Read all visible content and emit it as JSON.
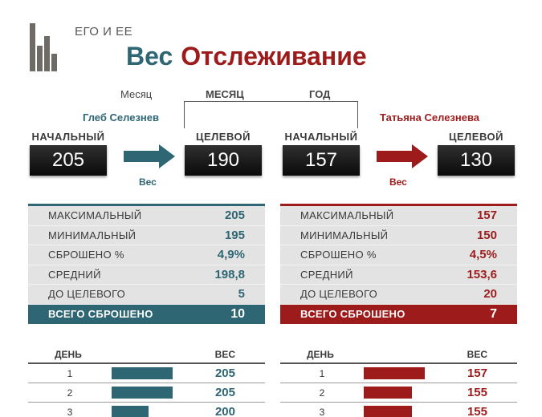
{
  "header": {
    "subtitle": "ЕГО И ЕЕ",
    "title_part1": "Вес",
    "title_part2": "Отслеживание"
  },
  "period": {
    "month_label": "Месяц",
    "month_caption": "МЕСЯЦ",
    "year_caption": "ГОД"
  },
  "him": {
    "name": "Глеб Селезнев",
    "start_label": "НАЧАЛЬНЫЙ",
    "start_value": "205",
    "target_label": "ЦЕЛЕВОЙ",
    "target_value": "190",
    "arrow_label": "Вес",
    "stats": [
      {
        "label": "МАКСИМАЛЬНЫЙ",
        "value": "205"
      },
      {
        "label": "МИНИМАЛЬНЫЙ",
        "value": "195"
      },
      {
        "label": "СБРОШЕНО %",
        "value": "4,9%"
      },
      {
        "label": "СРЕДНИЙ",
        "value": "198,8"
      },
      {
        "label": "ДО ЦЕЛЕВОГО",
        "value": "5"
      }
    ],
    "total_label": "ВСЕГО СБРОШЕНО",
    "total_value": "10",
    "log_headers": {
      "day": "ДЕНЬ",
      "weight": "ВЕС"
    },
    "log": [
      {
        "day": "1",
        "weight": "205",
        "bar_fraction": 1.0
      },
      {
        "day": "2",
        "weight": "205",
        "bar_fraction": 1.0
      },
      {
        "day": "3",
        "weight": "200",
        "bar_fraction": 0.6
      }
    ]
  },
  "her": {
    "name": "Татьяна Селезнева",
    "start_label": "НАЧАЛЬНЫЙ",
    "start_value": "157",
    "target_label": "ЦЕЛЕВОЙ",
    "target_value": "130",
    "arrow_label": "Вес",
    "stats": [
      {
        "label": "МАКСИМАЛЬНЫЙ",
        "value": "157"
      },
      {
        "label": "МИНИМАЛЬНЫЙ",
        "value": "150"
      },
      {
        "label": "СБРОШЕНО %",
        "value": "4,5%"
      },
      {
        "label": "СРЕДНИЙ",
        "value": "153,6"
      },
      {
        "label": "ДО ЦЕЛЕВОГО",
        "value": "20"
      }
    ],
    "total_label": "ВСЕГО СБРОШЕНО",
    "total_value": "7",
    "log_headers": {
      "day": "ДЕНЬ",
      "weight": "ВЕС"
    },
    "log": [
      {
        "day": "1",
        "weight": "157",
        "bar_fraction": 1.0
      },
      {
        "day": "2",
        "weight": "155",
        "bar_fraction": 0.79
      },
      {
        "day": "3",
        "weight": "155",
        "bar_fraction": 0.79
      }
    ]
  },
  "colors": {
    "his_accent": "#2e6673",
    "her_accent": "#9d1b1b",
    "stat_background": "#e3e3e3",
    "weight_box": "#1a1a1a"
  }
}
